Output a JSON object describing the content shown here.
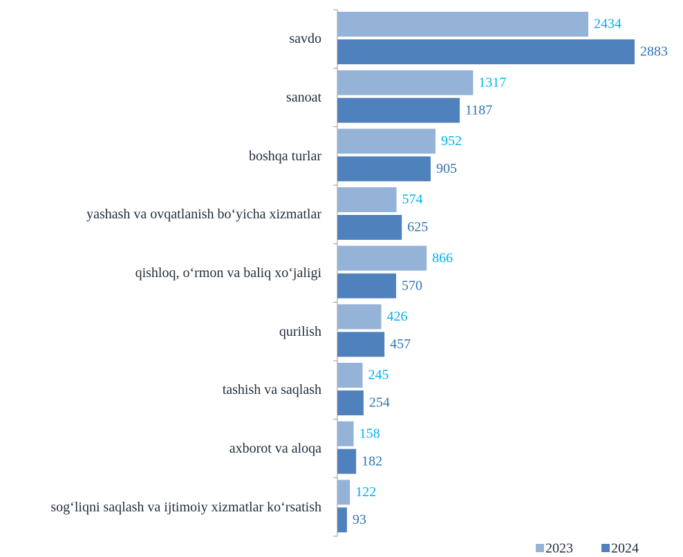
{
  "chart_data": {
    "type": "bar",
    "orientation": "horizontal",
    "categories": [
      "savdo",
      "sanoat",
      "boshqa turlar",
      "yashash va ovqatlanish bo‘yicha xizmatlar",
      "qishloq, o‘rmon va baliq xo‘jaligi",
      "qurilish",
      "tashish va saqlash",
      "axborot va aloqa",
      "sog‘liqni saqlash va ijtimoiy xizmatlar ko‘rsatish"
    ],
    "series": [
      {
        "name": "2023",
        "color": "#95b3d7",
        "label_color": "#00b0f0",
        "values": [
          2434,
          1317,
          952,
          574,
          866,
          426,
          245,
          158,
          122
        ]
      },
      {
        "name": "2024",
        "color": "#4f81bd",
        "label_color": "#2e74b5",
        "values": [
          2883,
          1187,
          905,
          625,
          570,
          457,
          254,
          182,
          93
        ]
      }
    ],
    "legend": "bottom-right"
  }
}
